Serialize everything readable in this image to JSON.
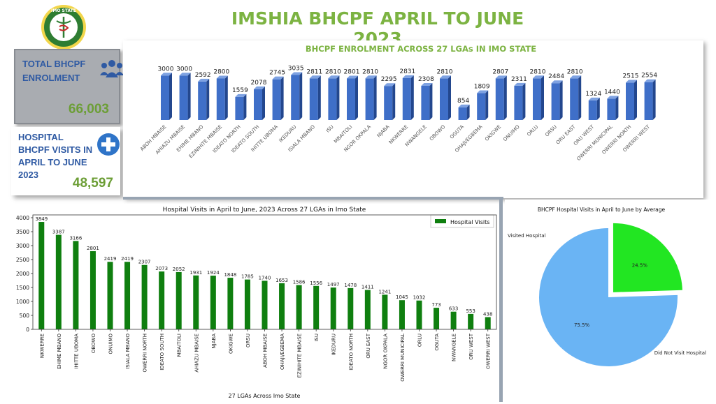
{
  "title": "IMSHIA BHCPF APRIL TO JUNE 2023",
  "logo": {
    "icon": "caduceus-seal-icon",
    "text": "IMO STATE"
  },
  "kpis": {
    "enrolment": {
      "label": "TOTAL BHCPF ENROLMENT",
      "value": "66,003",
      "icon": "people-icon"
    },
    "visits": {
      "label": "HOSPITAL BHCPF VISITS IN APRIL TO JUNE 2023",
      "value": "48,597",
      "icon": "plus-icon"
    }
  },
  "colors": {
    "title": "#7cb342",
    "kpi_label": "#2f5aa3",
    "kpi_value": "#6c9e36",
    "enrol_bar": "#3f6fc8",
    "visit_bar": "#0f7f0f",
    "pie_visited": "#22e622",
    "pie_not": "#6ab4f4"
  },
  "chart_data": [
    {
      "type": "bar",
      "title": "BHCPF ENROLMENT ACROSS 27 LGAs IN IMO STATE",
      "categories": [
        "ABOH MBAISE",
        "AHIAZU MBAISE",
        "EHIME MBANO",
        "EZINIHITE MBAISE",
        "IDEATO NORTH",
        "IDEATO SOUTH",
        "IHITTE UBOMA",
        "IKEDURU",
        "ISIALA MBANO",
        "ISU",
        "MBAITOLI",
        "NGOR OKPALA",
        "NJABA",
        "NKWERRE",
        "NWANGELE",
        "OBOWO",
        "OGUTA",
        "OHAJI/EGBEMA",
        "OKIGWE",
        "ONUIMO",
        "ORLU",
        "ORSU",
        "ORU EAST",
        "ORU WEST",
        "OWERRI MUNICIPAL",
        "OWERRI NORTH",
        "OWERRI WEST"
      ],
      "values": [
        3000,
        3000,
        2592,
        2800,
        1559,
        2078,
        2745,
        3035,
        2811,
        2810,
        2801,
        2810,
        2295,
        2831,
        2308,
        2810,
        854,
        1809,
        2807,
        2311,
        2810,
        2484,
        2810,
        1324,
        1440,
        2515,
        2554
      ],
      "ylim": [
        0,
        3200
      ]
    },
    {
      "type": "bar",
      "title": "Hospital Visits in April to June, 2023 Across 27 LGAs in Imo State",
      "xlabel": "27 LGAs Across Imo State",
      "ylabel": "",
      "legend": "top-right",
      "series": [
        {
          "name": "Hospital Visits"
        }
      ],
      "categories": [
        "NKWERRE",
        "EHIME MBANO",
        "IHITTE UBOMA",
        "OBOWO",
        "ONUIMO",
        "ISIALA MBANO",
        "OWERRI NORTH",
        "IDEATO SOUTH",
        "MBAITOLI",
        "AHIAZU MBAISE",
        "NJABA",
        "OKIGWE",
        "ORSU",
        "ABOH MBAISE",
        "OHAJI/EGBEMA",
        "EZINIHITE MBAISE",
        "ISU",
        "IKEDURU",
        "IDEATO NORTH",
        "ORU EAST",
        "NGOR OKPALA",
        "OWERRI MUNICIPAL",
        "ORLU",
        "OGUTA",
        "NWANGELE",
        "ORU WEST",
        "OWERRI WEST"
      ],
      "values": [
        3849,
        3387,
        3166,
        2801,
        2419,
        2419,
        2307,
        2073,
        2052,
        1931,
        1924,
        1848,
        1785,
        1740,
        1653,
        1586,
        1556,
        1497,
        1478,
        1411,
        1241,
        1045,
        1032,
        773,
        633,
        553,
        438
      ],
      "yticks": [
        0,
        500,
        1000,
        1500,
        2000,
        2500,
        3000,
        3500,
        4000
      ],
      "ylim": [
        0,
        4100
      ]
    },
    {
      "type": "pie",
      "title": "BHCPF Hospital Visits in April to June by Average",
      "slices": [
        {
          "label": "Visited Hospital",
          "value": 24.5,
          "display": "24.5%",
          "exploded": true
        },
        {
          "label": "Did Not Visit Hospital",
          "value": 75.5,
          "display": "75.5%"
        }
      ]
    }
  ]
}
